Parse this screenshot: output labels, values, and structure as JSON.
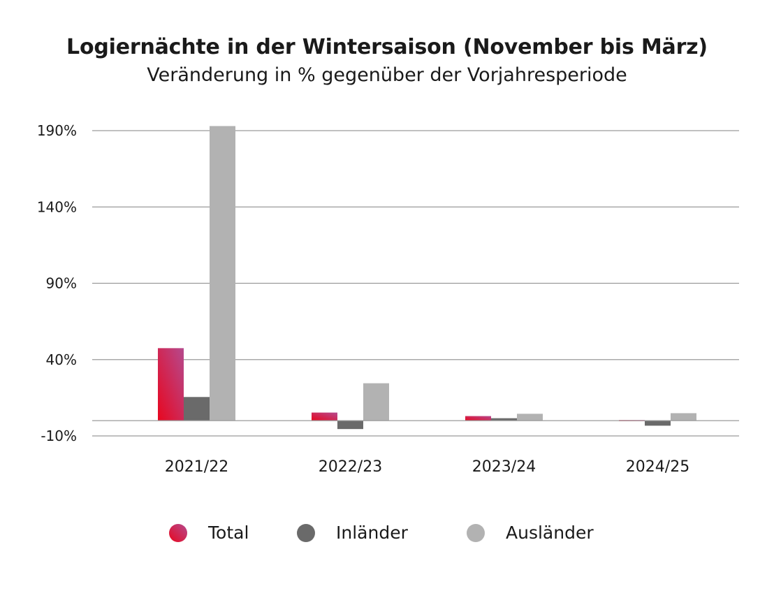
{
  "chart_data": {
    "type": "bar",
    "title": "Logiernächte in der Wintersaison (November bis März)",
    "subtitle": "Veränderung in % gegenüber der Vorjahresperiode",
    "categories": [
      "2021/22",
      "2022/23",
      "2023/24",
      "2024/25"
    ],
    "series": [
      {
        "name": "Total",
        "values": [
          47.5,
          5.3,
          3.0,
          0.4
        ],
        "color": "#e0102f",
        "color2": "#b84a8a"
      },
      {
        "name": "Inländer",
        "values": [
          15.5,
          -5.5,
          1.6,
          -3.3
        ],
        "color": "#6a6a6a"
      },
      {
        "name": "Ausländer",
        "values": [
          193.0,
          24.5,
          4.5,
          4.9
        ],
        "color": "#b2b2b2"
      }
    ],
    "yticks": [
      190,
      140,
      90,
      40,
      -10
    ],
    "ytick_labels": [
      "190%",
      "140%",
      "90%",
      "40%",
      "-10%"
    ],
    "ylim": [
      -10,
      190
    ],
    "grid": true,
    "legend_position": "bottom"
  }
}
